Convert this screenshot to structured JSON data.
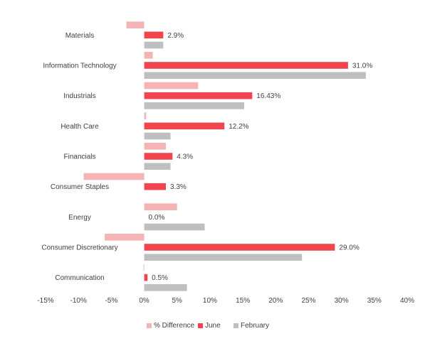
{
  "chart_data": {
    "type": "bar",
    "orientation": "horizontal",
    "categories": [
      "Communication",
      "Consumer Discretionary",
      "Energy",
      "Consumer Staples",
      "Financials",
      "Health Care",
      "Industrials",
      "Information Technology",
      "Materials"
    ],
    "series": [
      {
        "name": "% Difference",
        "color": "#f4b4b4",
        "values": [
          -0.1,
          -6.0,
          5.0,
          -9.2,
          3.3,
          0.3,
          8.2,
          1.3,
          -2.7
        ]
      },
      {
        "name": "June",
        "color": "#f0454e",
        "values": [
          0.5,
          29.0,
          0.0,
          3.3,
          4.3,
          12.2,
          16.43,
          31.0,
          2.9
        ],
        "labels": [
          "0.5%",
          "29.0%",
          "0.0%",
          "3.3%",
          "4.3%",
          "12.2%",
          "16.43%",
          "31.0%",
          "2.9%"
        ]
      },
      {
        "name": "February",
        "color": "#bfbfbf",
        "values": [
          6.5,
          24.0,
          9.2,
          null,
          4.0,
          4.0,
          15.2,
          33.7,
          2.9
        ]
      }
    ],
    "xlim": [
      -15,
      40
    ],
    "xticks": [
      -15,
      -10,
      -5,
      0,
      5,
      10,
      15,
      20,
      25,
      30,
      35,
      40
    ],
    "xtick_labels": [
      "-15%",
      "-10%",
      "-5%",
      "0%",
      "5%",
      "10%",
      "15%",
      "20%",
      "25%",
      "30%",
      "35%",
      "40%"
    ],
    "grid": false,
    "legend_position": "bottom"
  }
}
